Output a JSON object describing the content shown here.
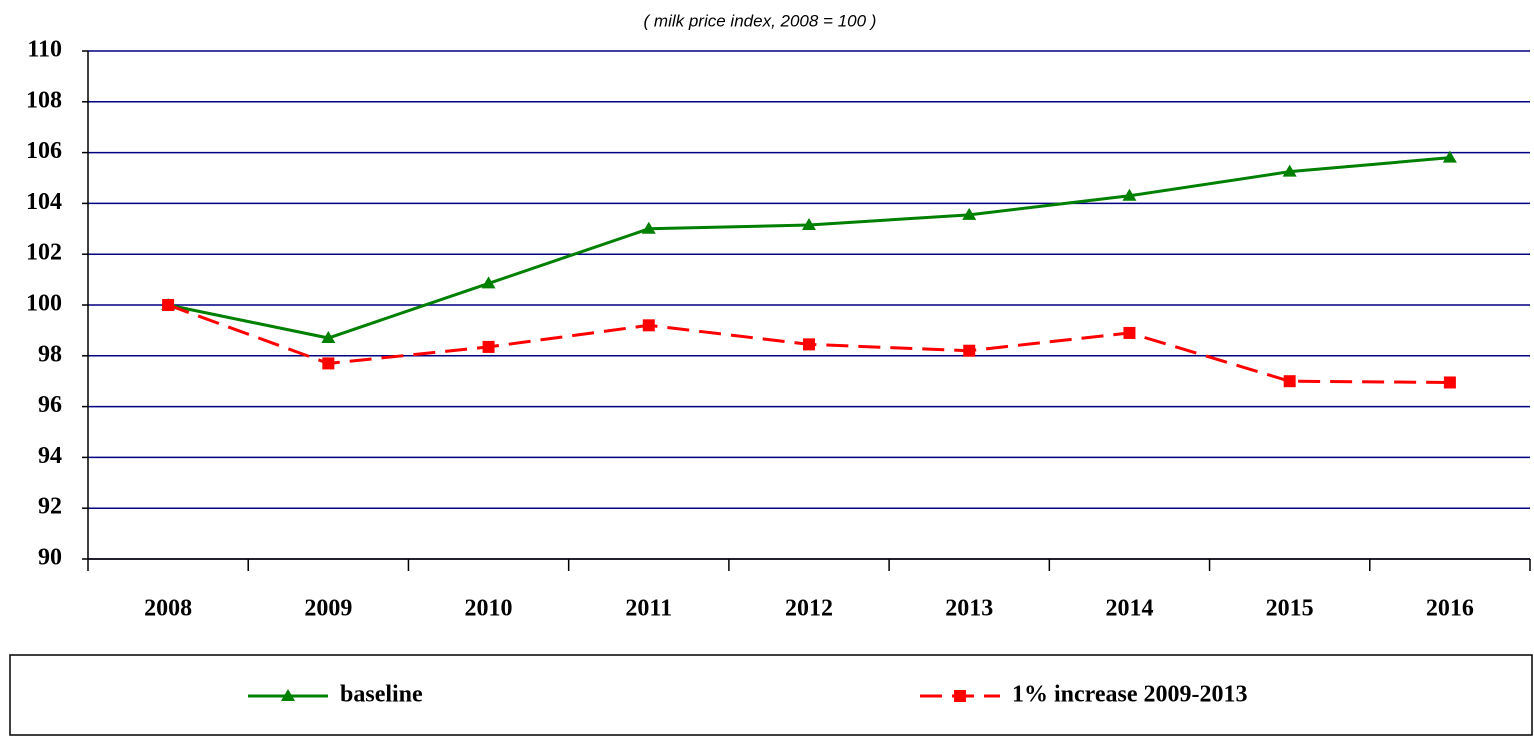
{
  "chart_data": {
    "type": "line",
    "subtitle": "( milk price index, 2008 = 100 )",
    "categories": [
      "2008",
      "2009",
      "2010",
      "2011",
      "2012",
      "2013",
      "2014",
      "2015",
      "2016"
    ],
    "series": [
      {
        "name": "baseline",
        "color": "#008000",
        "marker": "triangle",
        "dashed": false,
        "values": [
          100,
          98.7,
          100.85,
          103.0,
          103.15,
          103.55,
          104.3,
          105.25,
          105.8
        ]
      },
      {
        "name": "1% increase 2009-2013",
        "color": "#ff0000",
        "marker": "square",
        "dashed": true,
        "values": [
          100,
          97.7,
          98.35,
          99.2,
          98.45,
          98.2,
          98.9,
          97.0,
          96.95
        ]
      }
    ],
    "ylim": [
      90,
      110
    ],
    "yticks": [
      90,
      92,
      94,
      96,
      98,
      100,
      102,
      104,
      106,
      108,
      110
    ],
    "grid": true,
    "grid_color": "#000080",
    "legend": "bottom"
  }
}
